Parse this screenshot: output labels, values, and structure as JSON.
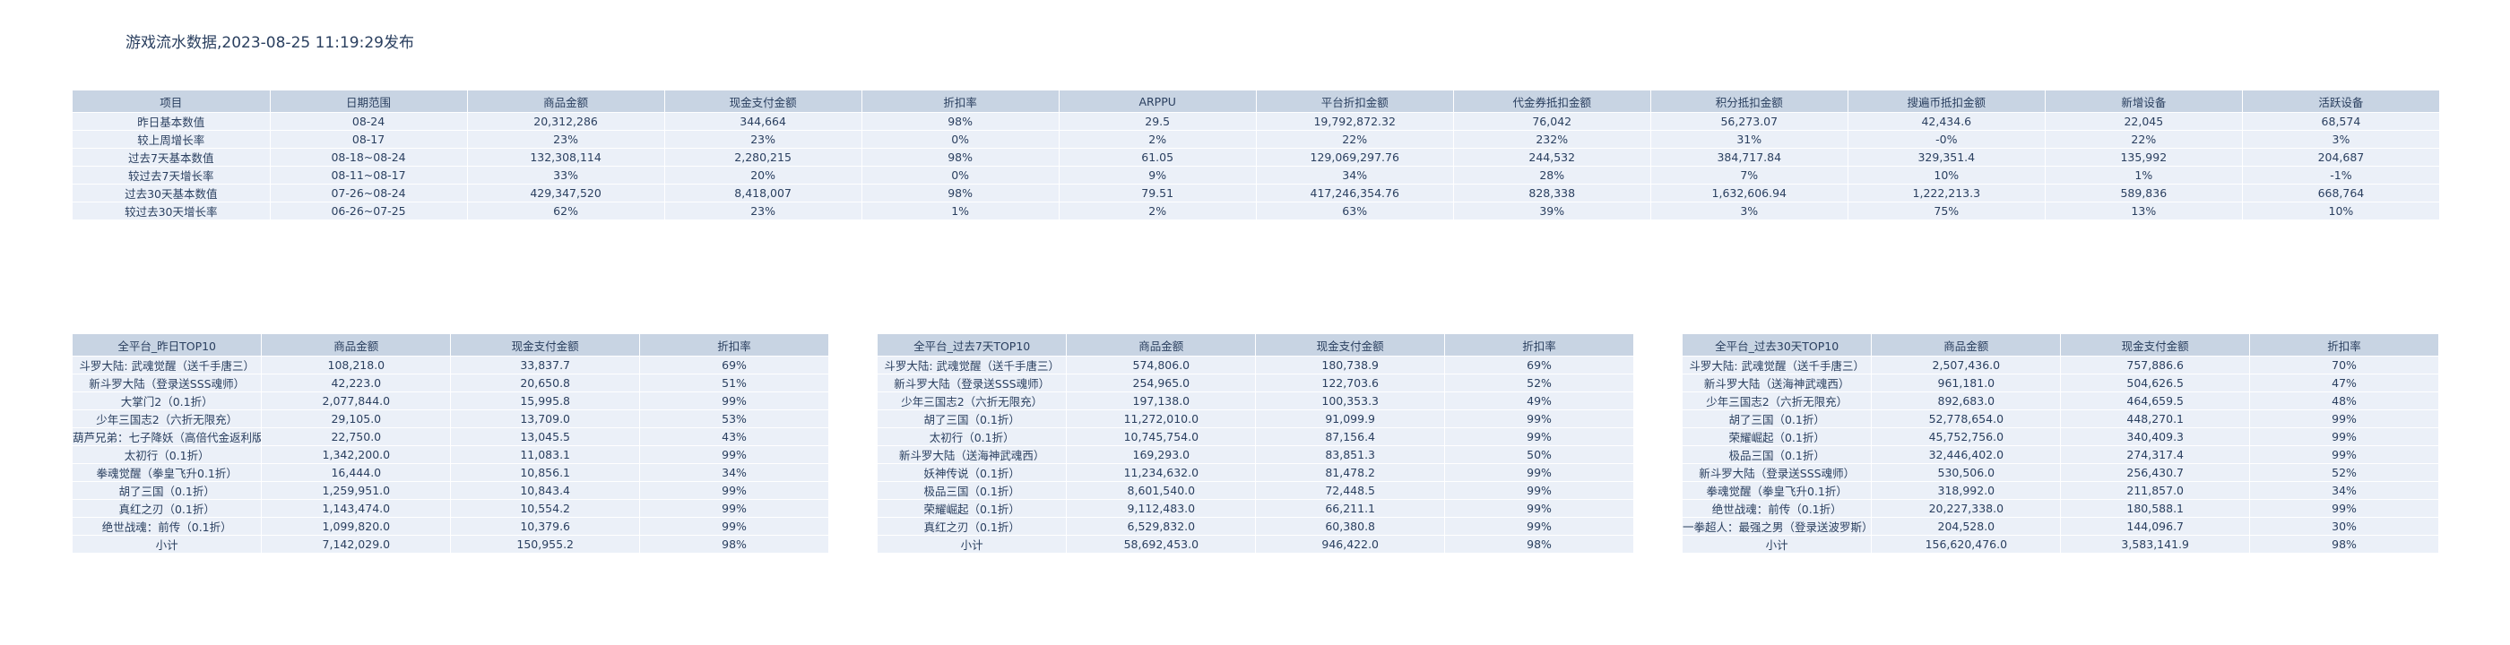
{
  "page_title": "游戏流水数据,2023-08-25 11:19:29发布",
  "chart_data": [
    {
      "type": "table",
      "columns": [
        "项目",
        "日期范围",
        "商品金额",
        "现金支付金额",
        "折扣率",
        "ARPPU",
        "平台折扣金额",
        "代金券抵扣金额",
        "积分抵扣金额",
        "搜遍币抵扣金额",
        "新增设备",
        "活跃设备"
      ],
      "rows": [
        [
          "昨日基本数值",
          "08-24",
          "20,312,286",
          "344,664",
          "98%",
          "29.5",
          "19,792,872.32",
          "76,042",
          "56,273.07",
          "42,434.6",
          "22,045",
          "68,574"
        ],
        [
          "较上周增长率",
          "08-17",
          "23%",
          "23%",
          "0%",
          "2%",
          "22%",
          "232%",
          "31%",
          "-0%",
          "22%",
          "3%"
        ],
        [
          "过去7天基本数值",
          "08-18~08-24",
          "132,308,114",
          "2,280,215",
          "98%",
          "61.05",
          "129,069,297.76",
          "244,532",
          "384,717.84",
          "329,351.4",
          "135,992",
          "204,687"
        ],
        [
          "较过去7天增长率",
          "08-11~08-17",
          "33%",
          "20%",
          "0%",
          "9%",
          "34%",
          "28%",
          "7%",
          "10%",
          "1%",
          "-1%"
        ],
        [
          "过去30天基本数值",
          "07-26~08-24",
          "429,347,520",
          "8,418,007",
          "98%",
          "79.51",
          "417,246,354.76",
          "828,338",
          "1,632,606.94",
          "1,222,213.3",
          "589,836",
          "668,764"
        ],
        [
          "较过去30天增长率",
          "06-26~07-25",
          "62%",
          "23%",
          "1%",
          "2%",
          "63%",
          "39%",
          "3%",
          "75%",
          "13%",
          "10%"
        ]
      ]
    },
    {
      "type": "table",
      "columns": [
        "全平台_昨日TOP10",
        "商品金额",
        "现金支付金额",
        "折扣率"
      ],
      "rows": [
        [
          "斗罗大陆: 武魂觉醒（送千手唐三）",
          "108,218.0",
          "33,837.7",
          "69%"
        ],
        [
          "新斗罗大陆（登录送SSS魂师）",
          "42,223.0",
          "20,650.8",
          "51%"
        ],
        [
          "大掌门2（0.1折）",
          "2,077,844.0",
          "15,995.8",
          "99%"
        ],
        [
          "少年三国志2（六折无限充）",
          "29,105.0",
          "13,709.0",
          "53%"
        ],
        [
          "葫芦兄弟：七子降妖（高倍代金返利版）",
          "22,750.0",
          "13,045.5",
          "43%"
        ],
        [
          "太初行（0.1折）",
          "1,342,200.0",
          "11,083.1",
          "99%"
        ],
        [
          "拳魂觉醒（拳皇飞升0.1折）",
          "16,444.0",
          "10,856.1",
          "34%"
        ],
        [
          "胡了三国（0.1折）",
          "1,259,951.0",
          "10,843.4",
          "99%"
        ],
        [
          "真红之刃（0.1折）",
          "1,143,474.0",
          "10,554.2",
          "99%"
        ],
        [
          "绝世战魂：前传（0.1折）",
          "1,099,820.0",
          "10,379.6",
          "99%"
        ],
        [
          "小计",
          "7,142,029.0",
          "150,955.2",
          "98%"
        ]
      ]
    },
    {
      "type": "table",
      "columns": [
        "全平台_过去7天TOP10",
        "商品金额",
        "现金支付金额",
        "折扣率"
      ],
      "rows": [
        [
          "斗罗大陆: 武魂觉醒（送千手唐三）",
          "574,806.0",
          "180,738.9",
          "69%"
        ],
        [
          "新斗罗大陆（登录送SSS魂师）",
          "254,965.0",
          "122,703.6",
          "52%"
        ],
        [
          "少年三国志2（六折无限充）",
          "197,138.0",
          "100,353.3",
          "49%"
        ],
        [
          "胡了三国（0.1折）",
          "11,272,010.0",
          "91,099.9",
          "99%"
        ],
        [
          "太初行（0.1折）",
          "10,745,754.0",
          "87,156.4",
          "99%"
        ],
        [
          "新斗罗大陆（送海神武魂西）",
          "169,293.0",
          "83,851.3",
          "50%"
        ],
        [
          "妖神传说（0.1折）",
          "11,234,632.0",
          "81,478.2",
          "99%"
        ],
        [
          "极品三国（0.1折）",
          "8,601,540.0",
          "72,448.5",
          "99%"
        ],
        [
          "荣耀崛起（0.1折）",
          "9,112,483.0",
          "66,211.1",
          "99%"
        ],
        [
          "真红之刃（0.1折）",
          "6,529,832.0",
          "60,380.8",
          "99%"
        ],
        [
          "小计",
          "58,692,453.0",
          "946,422.0",
          "98%"
        ]
      ]
    },
    {
      "type": "table",
      "columns": [
        "全平台_过去30天TOP10",
        "商品金额",
        "现金支付金额",
        "折扣率"
      ],
      "rows": [
        [
          "斗罗大陆: 武魂觉醒（送千手唐三）",
          "2,507,436.0",
          "757,886.6",
          "70%"
        ],
        [
          "新斗罗大陆（送海神武魂西）",
          "961,181.0",
          "504,626.5",
          "47%"
        ],
        [
          "少年三国志2（六折无限充）",
          "892,683.0",
          "464,659.5",
          "48%"
        ],
        [
          "胡了三国（0.1折）",
          "52,778,654.0",
          "448,270.1",
          "99%"
        ],
        [
          "荣耀崛起（0.1折）",
          "45,752,756.0",
          "340,409.3",
          "99%"
        ],
        [
          "极品三国（0.1折）",
          "32,446,402.0",
          "274,317.4",
          "99%"
        ],
        [
          "新斗罗大陆（登录送SSS魂师）",
          "530,506.0",
          "256,430.7",
          "52%"
        ],
        [
          "拳魂觉醒（拳皇飞升0.1折）",
          "318,992.0",
          "211,857.0",
          "34%"
        ],
        [
          "绝世战魂：前传（0.1折）",
          "20,227,338.0",
          "180,588.1",
          "99%"
        ],
        [
          "一拳超人：最强之男（登录送波罗斯）",
          "204,528.0",
          "144,096.7",
          "30%"
        ],
        [
          "小计",
          "156,620,476.0",
          "3,583,141.9",
          "98%"
        ]
      ]
    }
  ]
}
